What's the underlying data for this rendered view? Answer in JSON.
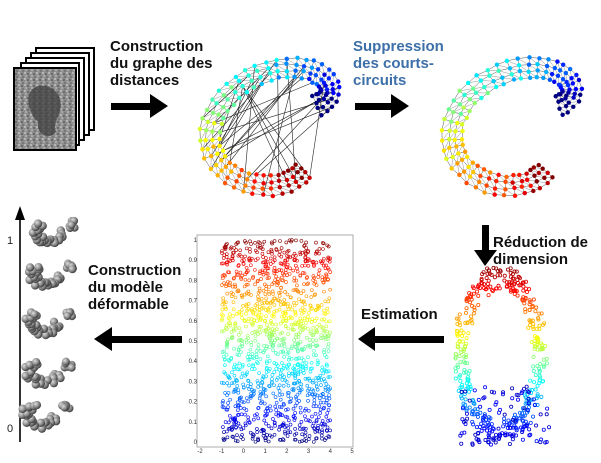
{
  "steps": {
    "distance_graph": [
      "Construction",
      "du graphe des",
      "distances"
    ],
    "short_circuit_removal": [
      "Suppression",
      "des courts-",
      "circuits"
    ],
    "dimension_reduction": [
      "Réduction de",
      "dimension"
    ],
    "estimation": "Estimation",
    "deformable_model": [
      "Construction",
      "du modèle",
      "déformable"
    ]
  },
  "colors": {
    "step_text": "#111111",
    "highlight_text": "#3d6fa8",
    "arrow": "#000000",
    "colormap": "jet"
  },
  "model_axis": {
    "top_label": "1",
    "bottom_label": "0"
  },
  "scatter_plot": {
    "x_tick_labels": [
      "-2",
      "-1",
      "0",
      "1",
      "2",
      "3",
      "4",
      "5"
    ],
    "y_tick_labels": [
      "0",
      "0.1",
      "0.2",
      "0.3",
      "0.4",
      "0.5",
      "0.6",
      "0.7",
      "0.8",
      "0.9",
      "1"
    ]
  }
}
